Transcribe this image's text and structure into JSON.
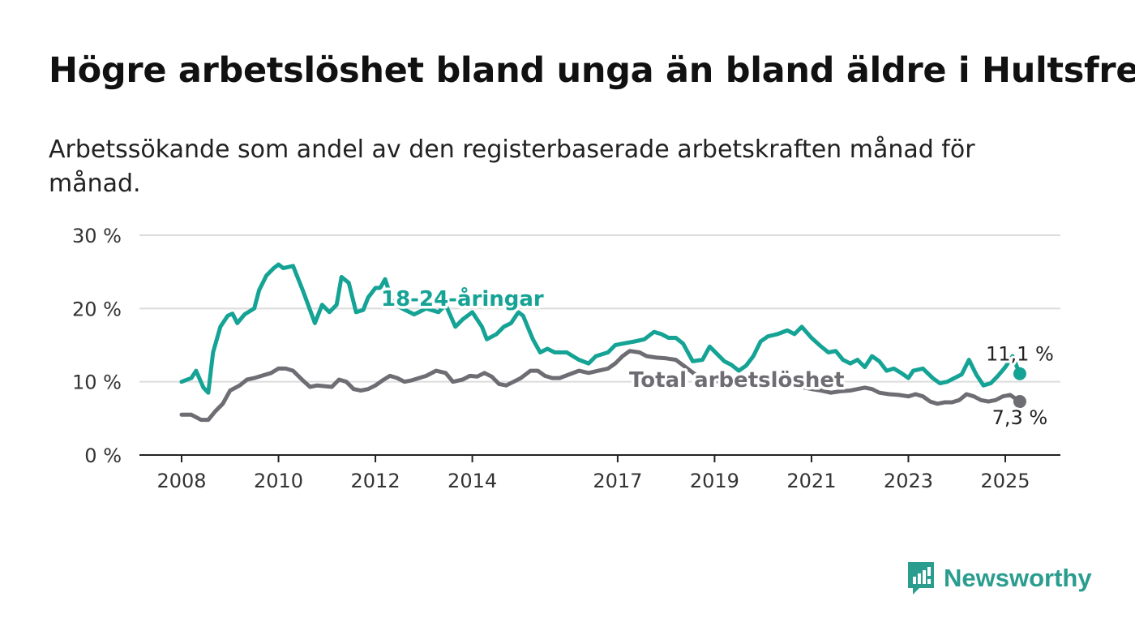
{
  "title": "Högre arbetslöshet bland unga än bland äldre i Hultsfred",
  "subtitle": "Arbetssökande som andel av den registerbaserade arbetskraften månad för månad.",
  "brand": {
    "name": "Newsworthy",
    "color": "#2a9d8f",
    "icon": "bar-chart-speech-bubble-icon"
  },
  "chart_data": {
    "type": "line",
    "x_unit": "year",
    "y_unit": "%",
    "ylim": [
      0,
      30
    ],
    "y_ticks": [
      0,
      10,
      20,
      30
    ],
    "y_tick_labels": [
      "0 %",
      "10 %",
      "20 %",
      "30 %"
    ],
    "x_ticks": [
      2008,
      2010,
      2012,
      2014,
      2017,
      2019,
      2021,
      2023,
      2025
    ],
    "x_tick_labels": [
      "2008",
      "2010",
      "2012",
      "2014",
      "2017",
      "2019",
      "2021",
      "2023",
      "2025"
    ],
    "grid": "horizontal",
    "series": [
      {
        "name": "18-24-åringar",
        "color": "#14a394",
        "end_label": "11,1 %",
        "points": [
          [
            2008.0,
            10.0
          ],
          [
            2008.2,
            10.5
          ],
          [
            2008.3,
            11.5
          ],
          [
            2008.45,
            9.2
          ],
          [
            2008.55,
            8.5
          ],
          [
            2008.65,
            14.0
          ],
          [
            2008.8,
            17.5
          ],
          [
            2008.95,
            19.0
          ],
          [
            2009.05,
            19.3
          ],
          [
            2009.15,
            18.0
          ],
          [
            2009.3,
            19.2
          ],
          [
            2009.5,
            20.0
          ],
          [
            2009.6,
            22.5
          ],
          [
            2009.75,
            24.5
          ],
          [
            2009.9,
            25.5
          ],
          [
            2010.0,
            26.0
          ],
          [
            2010.1,
            25.5
          ],
          [
            2010.3,
            25.8
          ],
          [
            2010.5,
            22.5
          ],
          [
            2010.65,
            19.8
          ],
          [
            2010.75,
            18.0
          ],
          [
            2010.9,
            20.5
          ],
          [
            2011.05,
            19.5
          ],
          [
            2011.2,
            20.5
          ],
          [
            2011.3,
            24.3
          ],
          [
            2011.45,
            23.5
          ],
          [
            2011.6,
            19.5
          ],
          [
            2011.75,
            19.8
          ],
          [
            2011.85,
            21.5
          ],
          [
            2012.0,
            22.8
          ],
          [
            2012.1,
            22.8
          ],
          [
            2012.2,
            24.0
          ],
          [
            2012.35,
            21.0
          ],
          [
            2012.55,
            20.0
          ],
          [
            2012.8,
            19.2
          ],
          [
            2013.05,
            20.0
          ],
          [
            2013.3,
            19.5
          ],
          [
            2013.45,
            20.5
          ],
          [
            2013.65,
            17.5
          ],
          [
            2013.8,
            18.5
          ],
          [
            2014.0,
            19.5
          ],
          [
            2014.2,
            17.5
          ],
          [
            2014.3,
            15.8
          ],
          [
            2014.5,
            16.5
          ],
          [
            2014.65,
            17.5
          ],
          [
            2014.8,
            18.0
          ],
          [
            2014.95,
            19.5
          ],
          [
            2015.05,
            19.0
          ],
          [
            2015.25,
            15.8
          ],
          [
            2015.4,
            14.0
          ],
          [
            2015.55,
            14.5
          ],
          [
            2015.7,
            14.0
          ],
          [
            2015.95,
            14.0
          ],
          [
            2016.2,
            13.0
          ],
          [
            2016.4,
            12.5
          ],
          [
            2016.55,
            13.5
          ],
          [
            2016.8,
            14.0
          ],
          [
            2016.95,
            15.0
          ],
          [
            2017.1,
            15.2
          ],
          [
            2017.35,
            15.5
          ],
          [
            2017.55,
            15.8
          ],
          [
            2017.75,
            16.8
          ],
          [
            2017.9,
            16.5
          ],
          [
            2018.05,
            16.0
          ],
          [
            2018.2,
            16.0
          ],
          [
            2018.35,
            15.2
          ],
          [
            2018.55,
            12.8
          ],
          [
            2018.75,
            13.0
          ],
          [
            2018.9,
            14.8
          ],
          [
            2019.05,
            13.8
          ],
          [
            2019.2,
            12.8
          ],
          [
            2019.35,
            12.3
          ],
          [
            2019.5,
            11.5
          ],
          [
            2019.65,
            12.2
          ],
          [
            2019.8,
            13.5
          ],
          [
            2019.95,
            15.5
          ],
          [
            2020.1,
            16.2
          ],
          [
            2020.3,
            16.5
          ],
          [
            2020.5,
            17.0
          ],
          [
            2020.65,
            16.5
          ],
          [
            2020.8,
            17.5
          ],
          [
            2021.0,
            16.0
          ],
          [
            2021.2,
            14.8
          ],
          [
            2021.35,
            14.0
          ],
          [
            2021.5,
            14.2
          ],
          [
            2021.65,
            13.0
          ],
          [
            2021.8,
            12.5
          ],
          [
            2021.95,
            13.0
          ],
          [
            2022.1,
            12.0
          ],
          [
            2022.25,
            13.5
          ],
          [
            2022.4,
            12.8
          ],
          [
            2022.55,
            11.5
          ],
          [
            2022.7,
            11.8
          ],
          [
            2022.85,
            11.2
          ],
          [
            2023.0,
            10.5
          ],
          [
            2023.1,
            11.5
          ],
          [
            2023.3,
            11.8
          ],
          [
            2023.5,
            10.5
          ],
          [
            2023.65,
            9.8
          ],
          [
            2023.8,
            10.0
          ],
          [
            2023.95,
            10.5
          ],
          [
            2024.1,
            11.0
          ],
          [
            2024.25,
            13.0
          ],
          [
            2024.4,
            11.0
          ],
          [
            2024.55,
            9.5
          ],
          [
            2024.7,
            9.8
          ],
          [
            2024.85,
            10.8
          ],
          [
            2025.0,
            12.0
          ],
          [
            2025.15,
            13.5
          ],
          [
            2025.3,
            11.1
          ]
        ]
      },
      {
        "name": "Total arbetslöshet",
        "color": "#6e6d73",
        "end_label": "7,3 %",
        "points": [
          [
            2008.0,
            5.5
          ],
          [
            2008.2,
            5.5
          ],
          [
            2008.4,
            4.8
          ],
          [
            2008.55,
            4.8
          ],
          [
            2008.7,
            6.0
          ],
          [
            2008.85,
            7.0
          ],
          [
            2009.0,
            8.8
          ],
          [
            2009.2,
            9.5
          ],
          [
            2009.35,
            10.3
          ],
          [
            2009.5,
            10.5
          ],
          [
            2009.65,
            10.8
          ],
          [
            2009.85,
            11.2
          ],
          [
            2010.0,
            11.8
          ],
          [
            2010.15,
            11.8
          ],
          [
            2010.3,
            11.5
          ],
          [
            2010.5,
            10.2
          ],
          [
            2010.65,
            9.3
          ],
          [
            2010.8,
            9.5
          ],
          [
            2010.95,
            9.4
          ],
          [
            2011.1,
            9.3
          ],
          [
            2011.25,
            10.3
          ],
          [
            2011.4,
            10.0
          ],
          [
            2011.55,
            9.0
          ],
          [
            2011.7,
            8.8
          ],
          [
            2011.85,
            9.0
          ],
          [
            2012.0,
            9.5
          ],
          [
            2012.15,
            10.2
          ],
          [
            2012.3,
            10.8
          ],
          [
            2012.45,
            10.5
          ],
          [
            2012.6,
            10.0
          ],
          [
            2012.75,
            10.2
          ],
          [
            2012.9,
            10.5
          ],
          [
            2013.05,
            10.8
          ],
          [
            2013.25,
            11.5
          ],
          [
            2013.45,
            11.2
          ],
          [
            2013.6,
            10.0
          ],
          [
            2013.8,
            10.3
          ],
          [
            2013.95,
            10.8
          ],
          [
            2014.1,
            10.7
          ],
          [
            2014.25,
            11.2
          ],
          [
            2014.4,
            10.7
          ],
          [
            2014.55,
            9.7
          ],
          [
            2014.7,
            9.5
          ],
          [
            2014.85,
            10.0
          ],
          [
            2015.0,
            10.5
          ],
          [
            2015.2,
            11.5
          ],
          [
            2015.35,
            11.5
          ],
          [
            2015.5,
            10.8
          ],
          [
            2015.65,
            10.5
          ],
          [
            2015.8,
            10.5
          ],
          [
            2016.0,
            11.0
          ],
          [
            2016.2,
            11.5
          ],
          [
            2016.4,
            11.2
          ],
          [
            2016.6,
            11.5
          ],
          [
            2016.8,
            11.8
          ],
          [
            2016.95,
            12.5
          ],
          [
            2017.1,
            13.5
          ],
          [
            2017.25,
            14.2
          ],
          [
            2017.45,
            14.0
          ],
          [
            2017.6,
            13.5
          ],
          [
            2017.8,
            13.3
          ],
          [
            2018.0,
            13.2
          ],
          [
            2018.2,
            13.0
          ],
          [
            2018.4,
            12.0
          ],
          [
            2018.6,
            11.0
          ],
          [
            2018.8,
            10.5
          ],
          [
            2019.0,
            10.0
          ],
          [
            2019.2,
            10.3
          ],
          [
            2019.4,
            10.0
          ],
          [
            2019.6,
            9.8
          ],
          [
            2019.8,
            10.0
          ],
          [
            2020.0,
            10.3
          ],
          [
            2020.2,
            9.8
          ],
          [
            2020.4,
            9.5
          ],
          [
            2020.6,
            9.5
          ],
          [
            2020.8,
            9.3
          ],
          [
            2021.0,
            9.0
          ],
          [
            2021.2,
            8.8
          ],
          [
            2021.4,
            8.5
          ],
          [
            2021.6,
            8.7
          ],
          [
            2021.8,
            8.8
          ],
          [
            2021.95,
            9.0
          ],
          [
            2022.1,
            9.2
          ],
          [
            2022.25,
            9.0
          ],
          [
            2022.4,
            8.5
          ],
          [
            2022.6,
            8.3
          ],
          [
            2022.8,
            8.2
          ],
          [
            2023.0,
            8.0
          ],
          [
            2023.15,
            8.3
          ],
          [
            2023.3,
            8.0
          ],
          [
            2023.45,
            7.3
          ],
          [
            2023.6,
            7.0
          ],
          [
            2023.75,
            7.2
          ],
          [
            2023.9,
            7.2
          ],
          [
            2024.05,
            7.5
          ],
          [
            2024.2,
            8.3
          ],
          [
            2024.35,
            8.0
          ],
          [
            2024.5,
            7.5
          ],
          [
            2024.65,
            7.3
          ],
          [
            2024.8,
            7.5
          ],
          [
            2024.95,
            8.0
          ],
          [
            2025.1,
            8.2
          ],
          [
            2025.3,
            7.3
          ]
        ]
      }
    ]
  }
}
